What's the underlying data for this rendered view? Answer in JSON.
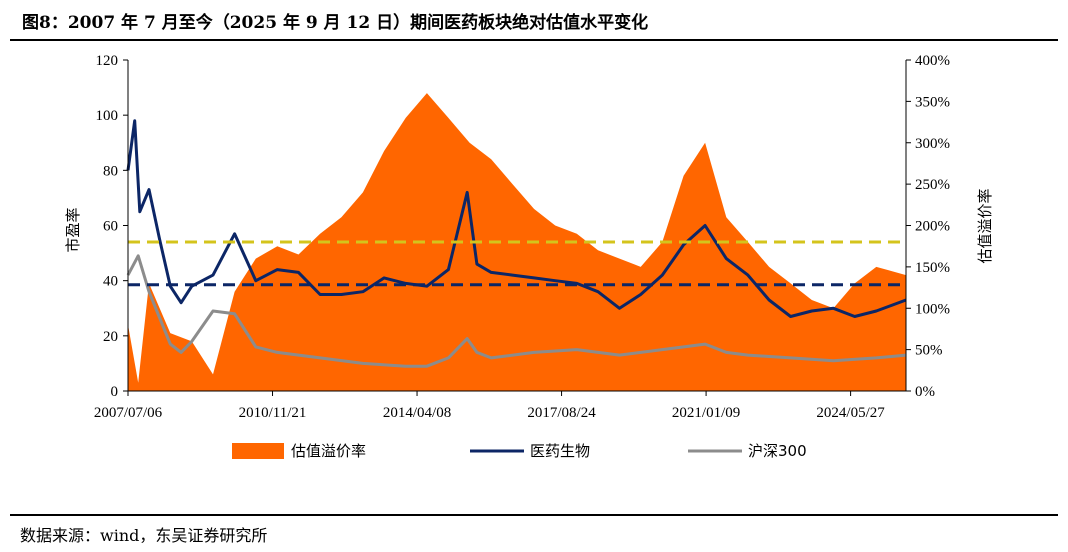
{
  "title": "图8：2007 年 7 月至今（2025 年 9 月 12 日）期间医药板块绝对估值水平变化",
  "source": "数据来源：wind，东吴证券研究所",
  "chart_data": {
    "type": "line",
    "x_tick_labels": [
      "2007/07/06",
      "2010/11/21",
      "2014/04/08",
      "2017/08/24",
      "2021/01/09",
      "2024/05/27"
    ],
    "x_range": [
      "2007/07/06",
      "2025/09/12"
    ],
    "y_left": {
      "label": "市盈率",
      "ticks": [
        "0",
        "20",
        "40",
        "60",
        "80",
        "100",
        "120"
      ],
      "range": [
        0,
        120
      ]
    },
    "y_right": {
      "label": "估值溢价率",
      "ticks": [
        "0%",
        "50%",
        "100%",
        "150%",
        "200%",
        "250%",
        "300%",
        "350%",
        "400%"
      ],
      "range": [
        0,
        400
      ]
    },
    "legend": [
      "估值溢价率",
      "医药生物",
      "沪深300"
    ],
    "colors": {
      "premium": "#ff6600",
      "pharma": "#0c2666",
      "hs300": "#8c8c8c",
      "mean_premium": "#d4c41c",
      "mean_pharma": "#0c2666"
    },
    "series": [
      {
        "name": "估值溢价率",
        "axis": "right",
        "type": "area",
        "x": [
          "2007/07/06",
          "2007/10/01",
          "2008/01/01",
          "2008/07/01",
          "2009/01/01",
          "2009/07/01",
          "2010/01/01",
          "2010/07/01",
          "2011/01/01",
          "2011/07/01",
          "2012/01/01",
          "2012/07/01",
          "2013/01/01",
          "2013/07/01",
          "2014/01/01",
          "2014/07/01",
          "2015/01/01",
          "2015/07/01",
          "2016/01/01",
          "2016/07/01",
          "2017/01/01",
          "2017/07/01",
          "2018/01/01",
          "2018/07/01",
          "2019/01/01",
          "2019/07/01",
          "2020/01/01",
          "2020/07/01",
          "2021/01/01",
          "2021/07/01",
          "2022/01/01",
          "2022/07/01",
          "2023/01/01",
          "2023/07/01",
          "2024/01/01",
          "2024/07/01",
          "2025/01/01",
          "2025/09/12"
        ],
        "values": [
          80,
          10,
          130,
          70,
          60,
          20,
          120,
          160,
          175,
          165,
          190,
          210,
          240,
          290,
          330,
          360,
          330,
          300,
          280,
          250,
          220,
          200,
          190,
          170,
          160,
          150,
          180,
          260,
          300,
          210,
          180,
          150,
          130,
          110,
          100,
          130,
          150,
          140
        ]
      },
      {
        "name": "医药生物",
        "axis": "left",
        "x": [
          "2007/07/06",
          "2007/09/01",
          "2007/10/15",
          "2008/01/01",
          "2008/04/01",
          "2008/07/01",
          "2008/10/01",
          "2009/01/01",
          "2009/07/01",
          "2010/01/01",
          "2010/07/01",
          "2011/01/01",
          "2011/07/01",
          "2012/01/01",
          "2012/07/01",
          "2013/01/01",
          "2013/07/01",
          "2014/01/01",
          "2014/07/01",
          "2015/01/01",
          "2015/06/10",
          "2015/09/01",
          "2016/01/01",
          "2016/07/01",
          "2017/01/01",
          "2017/07/01",
          "2018/01/01",
          "2018/07/01",
          "2019/01/01",
          "2019/07/01",
          "2020/01/01",
          "2020/07/01",
          "2021/01/01",
          "2021/07/01",
          "2022/01/01",
          "2022/07/01",
          "2023/01/01",
          "2023/07/01",
          "2024/01/01",
          "2024/07/01",
          "2025/01/01",
          "2025/09/12"
        ],
        "values": [
          80,
          98,
          65,
          73,
          55,
          38,
          32,
          38,
          42,
          57,
          40,
          44,
          43,
          35,
          35,
          36,
          41,
          39,
          38,
          44,
          72,
          46,
          43,
          42,
          41,
          40,
          39,
          36,
          30,
          35,
          42,
          53,
          60,
          48,
          42,
          33,
          27,
          29,
          30,
          27,
          29,
          33
        ]
      },
      {
        "name": "沪深300",
        "axis": "left",
        "x": [
          "2007/07/06",
          "2007/10/01",
          "2008/01/01",
          "2008/07/01",
          "2008/10/01",
          "2009/01/01",
          "2009/07/01",
          "2010/01/01",
          "2010/07/01",
          "2011/01/01",
          "2012/01/01",
          "2013/01/01",
          "2014/01/01",
          "2014/07/01",
          "2015/01/01",
          "2015/06/10",
          "2015/09/01",
          "2016/01/01",
          "2017/01/01",
          "2018/01/01",
          "2019/01/01",
          "2020/01/01",
          "2021/01/01",
          "2021/07/01",
          "2022/01/01",
          "2023/01/01",
          "2024/01/01",
          "2025/01/01",
          "2025/09/12"
        ],
        "values": [
          42,
          49,
          36,
          17,
          14,
          18,
          29,
          28,
          16,
          14,
          12,
          10,
          9,
          9,
          12,
          19,
          14,
          12,
          14,
          15,
          13,
          15,
          17,
          14,
          13,
          12,
          11,
          12,
          13
        ]
      },
      {
        "name": "估值溢价率均值",
        "axis": "right",
        "type": "hline",
        "values": [
          180
        ]
      },
      {
        "name": "医药生物均值",
        "axis": "left",
        "type": "hline",
        "values": [
          38.5
        ]
      }
    ],
    "grid": false,
    "legend_position": "bottom"
  }
}
